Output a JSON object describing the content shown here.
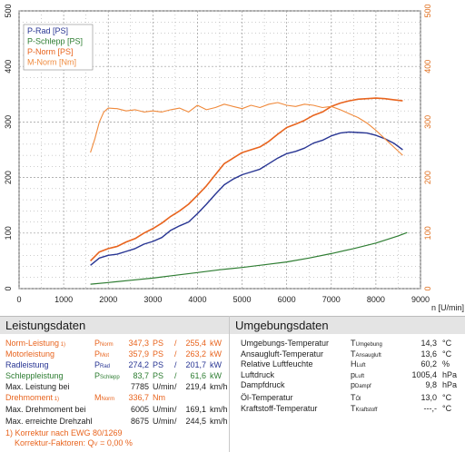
{
  "colors": {
    "p_rad": "#283593",
    "p_schlepp": "#2e7d32",
    "p_norm": "#e8641e",
    "m_norm": "#f08a3c",
    "grid": "#9a9a9a",
    "axis_right": "#e07020"
  },
  "chart_data": {
    "type": "line",
    "xlabel": "n [U/min]",
    "xlim": [
      0,
      9000
    ],
    "ylim": [
      0,
      500
    ],
    "x_ticks": [
      "0",
      "1000",
      "2000",
      "3000",
      "4000",
      "5000",
      "6000",
      "7000",
      "8000",
      "9000"
    ],
    "y_ticks": [
      "0",
      "100",
      "200",
      "300",
      "400",
      "500"
    ],
    "y2_ticks": [
      "0",
      "100",
      "200",
      "300",
      "400",
      "500"
    ],
    "grid": true,
    "legend_position": "top-left",
    "series": [
      {
        "name": "P-Rad [PS]",
        "axis": "left",
        "x": [
          1600,
          1800,
          2000,
          2200,
          2400,
          2600,
          2800,
          3000,
          3200,
          3400,
          3600,
          3800,
          4000,
          4200,
          4400,
          4600,
          4800,
          5000,
          5200,
          5400,
          5600,
          5800,
          6000,
          6200,
          6400,
          6600,
          6800,
          7000,
          7200,
          7400,
          7600,
          7800,
          8000,
          8200,
          8400,
          8600
        ],
        "y": [
          42,
          55,
          60,
          62,
          67,
          72,
          80,
          85,
          92,
          105,
          113,
          120,
          135,
          152,
          170,
          187,
          197,
          205,
          210,
          215,
          225,
          235,
          243,
          247,
          253,
          262,
          267,
          275,
          280,
          282,
          281,
          280,
          276,
          270,
          262,
          250
        ]
      },
      {
        "name": "P-Schlepp [PS]",
        "axis": "left",
        "x": [
          1600,
          2000,
          2500,
          3000,
          3500,
          4000,
          4500,
          5000,
          5500,
          6000,
          6500,
          7000,
          7500,
          8000,
          8500,
          8700
        ],
        "y": [
          8,
          11,
          15,
          19,
          24,
          29,
          34,
          38,
          43,
          48,
          55,
          63,
          72,
          82,
          95,
          101
        ]
      },
      {
        "name": "P-Norm [PS]",
        "axis": "left",
        "x": [
          1600,
          1800,
          2000,
          2200,
          2400,
          2600,
          2800,
          3000,
          3200,
          3400,
          3600,
          3800,
          4000,
          4200,
          4400,
          4600,
          4800,
          5000,
          5200,
          5400,
          5600,
          5800,
          6000,
          6200,
          6400,
          6600,
          6800,
          7000,
          7200,
          7400,
          7600,
          7800,
          8000,
          8200,
          8400,
          8600
        ],
        "y": [
          50,
          66,
          72,
          76,
          84,
          90,
          100,
          108,
          118,
          130,
          140,
          152,
          168,
          185,
          205,
          225,
          235,
          245,
          250,
          255,
          265,
          278,
          290,
          296,
          303,
          312,
          318,
          328,
          334,
          338,
          341,
          342,
          343,
          342,
          340,
          338
        ]
      },
      {
        "name": "M-Norm [Nm]",
        "axis": "right",
        "x": [
          1600,
          1700,
          1800,
          1900,
          2000,
          2200,
          2400,
          2600,
          2800,
          3000,
          3200,
          3400,
          3600,
          3800,
          4000,
          4200,
          4400,
          4600,
          4800,
          5000,
          5200,
          5400,
          5600,
          5800,
          6000,
          6200,
          6400,
          6600,
          6800,
          7000,
          7200,
          7400,
          7600,
          7800,
          8000,
          8200,
          8400,
          8600
        ],
        "y": [
          245,
          270,
          300,
          318,
          325,
          324,
          320,
          322,
          318,
          320,
          318,
          322,
          325,
          318,
          330,
          322,
          326,
          332,
          328,
          324,
          330,
          326,
          332,
          335,
          330,
          328,
          332,
          330,
          326,
          328,
          322,
          315,
          308,
          298,
          285,
          270,
          255,
          240
        ]
      }
    ]
  },
  "leistung": {
    "title": "Leistungsdaten",
    "rows": [
      {
        "label": "Norm-Leistung",
        "note": "1)",
        "sym": "P",
        "sub": "Norm",
        "v1": "347,3",
        "u1": "PS",
        "sep": "/",
        "v2": "255,4",
        "u2": "kW",
        "color": "#e8641e"
      },
      {
        "label": "Motorleistung",
        "note": "",
        "sym": "P",
        "sub": "Mot",
        "v1": "357,9",
        "u1": "PS",
        "sep": "/",
        "v2": "263,2",
        "u2": "kW",
        "color": "#e8641e"
      },
      {
        "label": "Radleistung",
        "note": "",
        "sym": "P",
        "sub": "Rad",
        "v1": "274,2",
        "u1": "PS",
        "sep": "/",
        "v2": "201,7",
        "u2": "kW",
        "color": "#283593"
      },
      {
        "label": "Schleppleistung",
        "note": "",
        "sym": "P",
        "sub": "Schlepp",
        "v1": "83,7",
        "u1": "PS",
        "sep": "/",
        "v2": "61,6",
        "u2": "kW",
        "color": "#2e7d32"
      },
      {
        "label": "Max. Leistung bei",
        "note": "",
        "sym": "",
        "sub": "",
        "v1": "7785",
        "u1": "U/min",
        "sep": "/",
        "v2": "219,4",
        "u2": "km/h",
        "color": "#222222"
      }
    ],
    "rows2": [
      {
        "label": "Drehmoment",
        "note": "1)",
        "sym": "M",
        "sub": "Norm",
        "v1": "336,7",
        "u1": "Nm",
        "sep": "",
        "v2": "",
        "u2": "",
        "color": "#e8641e"
      },
      {
        "label": "Max. Drehmoment bei",
        "note": "",
        "sym": "",
        "sub": "",
        "v1": "6005",
        "u1": "U/min",
        "sep": "/",
        "v2": "169,1",
        "u2": "km/h",
        "color": "#222222"
      },
      {
        "label": "Max. erreichte Drehzahl",
        "note": "",
        "sym": "",
        "sub": "",
        "v1": "8675",
        "u1": "U/min",
        "sep": "/",
        "v2": "244,5",
        "u2": "km/h",
        "color": "#222222"
      }
    ],
    "footnote1": "1) Korrektur nach EWG 80/1269",
    "footnote2_label": "Korrektur-Faktoren:",
    "footnote2_sym": "Q",
    "footnote2_sub": "V",
    "footnote2_value": "= 0,00 %"
  },
  "umgebung": {
    "title": "Umgebungsdaten",
    "rows": [
      {
        "label": "Umgebungs-Temperatur",
        "sym": "T",
        "sub": "Umgebung",
        "value": "14,3",
        "unit": "°C"
      },
      {
        "label": "Ansaugluft-Temperatur",
        "sym": "T",
        "sub": "Ansaugluft",
        "value": "13,6",
        "unit": "°C"
      },
      {
        "label": "Relative Luftfeuchte",
        "sym": "H",
        "sub": "Luft",
        "value": "60,2",
        "unit": "%"
      },
      {
        "label": "Luftdruck",
        "sym": "p",
        "sub": "Luft",
        "value": "1005,4",
        "unit": "hPa"
      },
      {
        "label": "Dampfdruck",
        "sym": "p",
        "sub": "Dampf",
        "value": "9,8",
        "unit": "hPa"
      }
    ],
    "rows2": [
      {
        "label": "Öl-Temperatur",
        "sym": "T",
        "sub": "Öl",
        "value": "13,0",
        "unit": "°C"
      },
      {
        "label": "Kraftstoff-Temperatur",
        "sym": "T",
        "sub": "Kraftstoff",
        "value": "---,-",
        "unit": "°C"
      }
    ]
  }
}
